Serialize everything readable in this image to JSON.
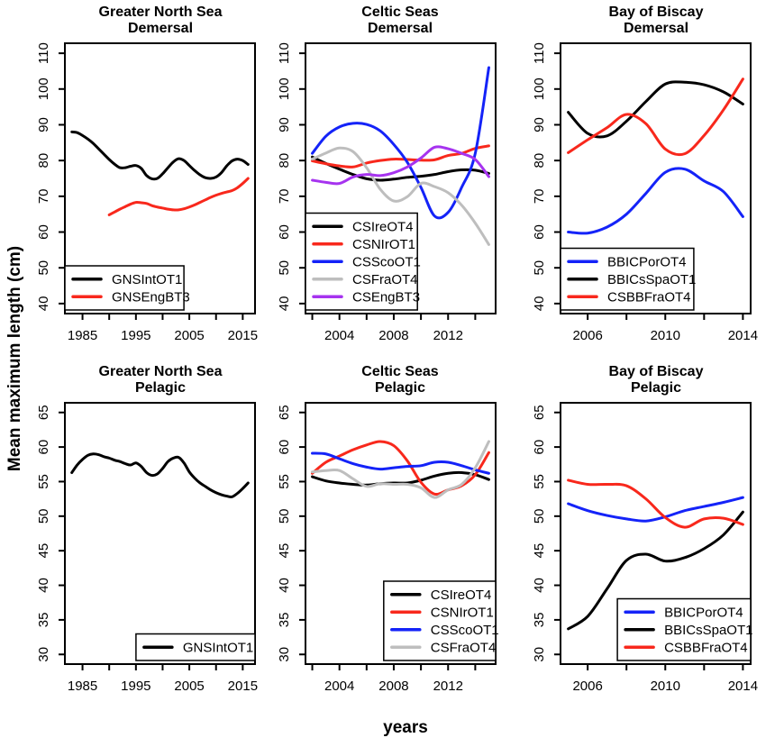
{
  "chart_data": {
    "type": "line",
    "figure_ylabel": "Mean maximum length (cm)",
    "figure_xlabel": "years",
    "colors": {
      "black": "#000000",
      "red": "#f8281c",
      "blue": "#1423f8",
      "gray": "#bebebe",
      "purple": "#a633ef"
    },
    "panels": [
      {
        "id": "greater-north-sea-demersal",
        "title_lines": [
          "Greater North Sea",
          "Demersal"
        ],
        "xlim": [
          1981.7,
          2017.3
        ],
        "ylim": [
          37.2,
          112.8
        ],
        "xticks": [
          1985,
          1990,
          1995,
          2000,
          2005,
          2010,
          2015
        ],
        "xtick_labels": [
          "1985",
          "",
          "1995",
          "",
          "2005",
          "",
          "2015"
        ],
        "yticks": [
          40,
          50,
          60,
          70,
          80,
          90,
          100,
          110
        ],
        "legend_position": "bottomleft",
        "series": [
          {
            "name": "GNSIntOT1",
            "color": "black",
            "years": [
              1983,
              1984,
              1985,
              1986,
              1987,
              1988,
              1989,
              1990,
              1991,
              1992,
              1993,
              1994,
              1995,
              1996,
              1997,
              1998,
              1999,
              2000,
              2001,
              2002,
              2003,
              2004,
              2005,
              2006,
              2007,
              2008,
              2009,
              2010,
              2011,
              2012,
              2013,
              2014,
              2015,
              2016
            ],
            "values": [
              88.0,
              87.8,
              87.0,
              86.0,
              84.8,
              83.3,
              81.8,
              80.3,
              79.0,
              78.0,
              78.0,
              78.4,
              78.6,
              77.8,
              75.8,
              74.9,
              75.0,
              76.3,
              78.0,
              79.6,
              80.5,
              80.0,
              78.6,
              77.2,
              76.0,
              75.2,
              75.0,
              75.4,
              76.6,
              78.5,
              79.9,
              80.4,
              80.0,
              78.9
            ]
          },
          {
            "name": "GNSEngBT3",
            "color": "red",
            "years": [
              1990,
              1991,
              1992,
              1993,
              1994,
              1995,
              1996,
              1997,
              1998,
              1999,
              2000,
              2001,
              2002,
              2003,
              2004,
              2005,
              2006,
              2007,
              2008,
              2009,
              2010,
              2011,
              2012,
              2013,
              2014,
              2015,
              2016
            ],
            "values": [
              64.8,
              65.6,
              66.4,
              67.1,
              67.8,
              68.3,
              68.2,
              68.0,
              67.4,
              67.0,
              66.7,
              66.4,
              66.2,
              66.2,
              66.5,
              67.0,
              67.6,
              68.3,
              69.0,
              69.7,
              70.3,
              70.8,
              71.2,
              71.6,
              72.4,
              73.6,
              75.0
            ]
          }
        ]
      },
      {
        "id": "celtic-seas-demersal",
        "title_lines": [
          "Celtic Seas",
          "Demersal"
        ],
        "xlim": [
          2001.5,
          2015.5
        ],
        "ylim": [
          37.2,
          112.8
        ],
        "xticks": [
          2002,
          2004,
          2006,
          2008,
          2010,
          2012,
          2014
        ],
        "xtick_labels": [
          "",
          "2004",
          "",
          "2008",
          "",
          "2012",
          ""
        ],
        "yticks": [
          40,
          50,
          60,
          70,
          80,
          90,
          100,
          110
        ],
        "legend_position": "bottomleft",
        "series": [
          {
            "name": "CSIreOT4",
            "color": "black",
            "years": [
              2002,
              2003,
              2004,
              2005,
              2006,
              2007,
              2008,
              2009,
              2010,
              2011,
              2012,
              2013,
              2014,
              2015
            ],
            "values": [
              81.0,
              79.2,
              77.6,
              76.1,
              74.9,
              74.5,
              74.8,
              75.3,
              75.6,
              76.1,
              76.9,
              77.4,
              77.3,
              76.4
            ]
          },
          {
            "name": "CSNIrOT1",
            "color": "red",
            "years": [
              2002,
              2003,
              2004,
              2005,
              2006,
              2007,
              2008,
              2009,
              2010,
              2011,
              2012,
              2013,
              2014,
              2015
            ],
            "values": [
              79.9,
              79.1,
              78.5,
              78.2,
              79.3,
              80.0,
              80.4,
              80.3,
              80.1,
              80.2,
              81.4,
              82.0,
              83.4,
              84.1
            ]
          },
          {
            "name": "CSScoOT1",
            "color": "blue",
            "years": [
              2002,
              2003,
              2004,
              2005,
              2006,
              2007,
              2008,
              2009,
              2010,
              2011,
              2012,
              2013,
              2014,
              2015
            ],
            "values": [
              82.0,
              86.8,
              89.4,
              90.4,
              90.1,
              88.3,
              84.5,
              79.5,
              72.5,
              64.5,
              65.5,
              72.5,
              82.0,
              106.0
            ]
          },
          {
            "name": "CSFraOT4",
            "color": "gray",
            "years": [
              2002,
              2003,
              2004,
              2005,
              2006,
              2007,
              2008,
              2009,
              2010,
              2011,
              2012,
              2013,
              2014,
              2015
            ],
            "values": [
              80.4,
              82.1,
              83.5,
              82.5,
              78.0,
              72.0,
              68.7,
              69.9,
              73.6,
              72.7,
              71.0,
              67.5,
              62.5,
              56.5
            ]
          },
          {
            "name": "CSEngBT3",
            "color": "purple",
            "years": [
              2002,
              2003,
              2004,
              2005,
              2006,
              2007,
              2008,
              2009,
              2010,
              2011,
              2012,
              2013,
              2014,
              2015
            ],
            "values": [
              74.5,
              73.9,
              73.6,
              75.4,
              76.1,
              75.8,
              76.6,
              78.2,
              80.7,
              83.7,
              83.3,
              82.0,
              80.3,
              75.5
            ]
          }
        ]
      },
      {
        "id": "bay-of-biscay-demersal",
        "title_lines": [
          "Bay of Biscay",
          "Demersal"
        ],
        "xlim": [
          2004.6,
          2014.4
        ],
        "ylim": [
          37.2,
          112.8
        ],
        "xticks": [
          2006,
          2008,
          2010,
          2012,
          2014
        ],
        "xtick_labels": [
          "2006",
          "",
          "2010",
          "",
          "2014"
        ],
        "yticks": [
          40,
          50,
          60,
          70,
          80,
          90,
          100,
          110
        ],
        "legend_position": "bottomleft",
        "series": [
          {
            "name": "BBICPorOT4",
            "color": "blue",
            "years": [
              2005,
              2006,
              2007,
              2008,
              2009,
              2010,
              2011,
              2012,
              2013,
              2014
            ],
            "values": [
              60.0,
              59.7,
              61.4,
              65.0,
              70.8,
              76.7,
              77.6,
              74.3,
              71.3,
              64.3
            ]
          },
          {
            "name": "BBICsSpaOT1",
            "color": "black",
            "years": [
              2005,
              2006,
              2007,
              2008,
              2009,
              2010,
              2011,
              2012,
              2013,
              2014
            ],
            "values": [
              93.5,
              87.6,
              86.9,
              91.0,
              96.5,
              101.4,
              101.9,
              101.2,
              99.2,
              95.8
            ]
          },
          {
            "name": "CSBBFraOT4",
            "color": "red",
            "years": [
              2005,
              2006,
              2007,
              2008,
              2009,
              2010,
              2011,
              2012,
              2013,
              2014
            ],
            "values": [
              82.2,
              85.8,
              89.2,
              92.9,
              90.3,
              83.2,
              81.9,
              87.0,
              94.2,
              102.8
            ]
          }
        ]
      },
      {
        "id": "greater-north-sea-pelagic",
        "title_lines": [
          "Greater North Sea",
          "Pelagic"
        ],
        "xlim": [
          1981.7,
          2017.3
        ],
        "ylim": [
          28.6,
          66.4
        ],
        "xticks": [
          1985,
          1990,
          1995,
          2000,
          2005,
          2010,
          2015
        ],
        "xtick_labels": [
          "1985",
          "",
          "1995",
          "",
          "2005",
          "",
          "2015"
        ],
        "yticks": [
          30,
          35,
          40,
          45,
          50,
          55,
          60,
          65
        ],
        "legend_position": "bottomright",
        "series": [
          {
            "name": "GNSIntOT1",
            "color": "black",
            "years": [
              1983,
              1984,
              1985,
              1986,
              1987,
              1988,
              1989,
              1990,
              1991,
              1992,
              1993,
              1994,
              1995,
              1996,
              1997,
              1998,
              1999,
              2000,
              2001,
              2002,
              2003,
              2004,
              2005,
              2006,
              2007,
              2008,
              2009,
              2010,
              2011,
              2012,
              2013,
              2014,
              2015,
              2016
            ],
            "values": [
              56.3,
              57.4,
              58.2,
              58.8,
              59.0,
              58.9,
              58.6,
              58.4,
              58.1,
              57.9,
              57.6,
              57.4,
              57.7,
              57.2,
              56.3,
              55.9,
              56.1,
              56.9,
              57.9,
              58.4,
              58.5,
              57.7,
              56.4,
              55.5,
              54.8,
              54.3,
              53.8,
              53.4,
              53.1,
              52.9,
              52.8,
              53.3,
              54.0,
              54.8
            ]
          }
        ]
      },
      {
        "id": "celtic-seas-pelagic",
        "title_lines": [
          "Celtic Seas",
          "Pelagic"
        ],
        "xlim": [
          2001.5,
          2015.5
        ],
        "ylim": [
          28.6,
          66.4
        ],
        "xticks": [
          2002,
          2004,
          2006,
          2008,
          2010,
          2012,
          2014
        ],
        "xtick_labels": [
          "",
          "2004",
          "",
          "2008",
          "",
          "2012",
          ""
        ],
        "yticks": [
          30,
          35,
          40,
          45,
          50,
          55,
          60,
          65
        ],
        "legend_position": "bottomright",
        "series": [
          {
            "name": "CSIreOT4",
            "color": "black",
            "years": [
              2002,
              2003,
              2004,
              2005,
              2006,
              2007,
              2008,
              2009,
              2010,
              2011,
              2012,
              2013,
              2014,
              2015
            ],
            "values": [
              55.7,
              55.1,
              54.8,
              54.6,
              54.5,
              54.7,
              54.8,
              54.8,
              55.2,
              55.8,
              56.2,
              56.3,
              56.0,
              55.3
            ]
          },
          {
            "name": "CSNIrOT1",
            "color": "red",
            "years": [
              2002,
              2003,
              2004,
              2005,
              2006,
              2007,
              2008,
              2009,
              2010,
              2011,
              2012,
              2013,
              2014,
              2015
            ],
            "values": [
              56.2,
              57.8,
              58.7,
              59.6,
              60.3,
              60.8,
              60.2,
              58.0,
              54.9,
              53.2,
              53.8,
              54.4,
              56.0,
              59.2
            ]
          },
          {
            "name": "CSScoOT1",
            "color": "blue",
            "years": [
              2002,
              2003,
              2004,
              2005,
              2006,
              2007,
              2008,
              2009,
              2010,
              2011,
              2012,
              2013,
              2014,
              2015
            ],
            "values": [
              59.1,
              59.0,
              58.3,
              57.6,
              57.1,
              56.8,
              57.0,
              57.2,
              57.3,
              57.8,
              57.8,
              57.3,
              56.7,
              56.2
            ]
          },
          {
            "name": "CSFraOT4",
            "color": "gray",
            "years": [
              2002,
              2003,
              2004,
              2005,
              2006,
              2007,
              2008,
              2009,
              2010,
              2011,
              2012,
              2013,
              2014,
              2015
            ],
            "values": [
              56.4,
              56.6,
              56.6,
              55.4,
              54.3,
              54.7,
              54.6,
              54.6,
              54.1,
              52.7,
              53.8,
              54.6,
              57.0,
              60.8
            ]
          }
        ]
      },
      {
        "id": "bay-of-biscay-pelagic",
        "title_lines": [
          "Bay of Biscay",
          "Pelagic"
        ],
        "xlim": [
          2004.6,
          2014.4
        ],
        "ylim": [
          28.6,
          66.4
        ],
        "xticks": [
          2006,
          2008,
          2010,
          2012,
          2014
        ],
        "xtick_labels": [
          "2006",
          "",
          "2010",
          "",
          "2014"
        ],
        "yticks": [
          30,
          35,
          40,
          45,
          50,
          55,
          60,
          65
        ],
        "legend_position": "bottomright",
        "series": [
          {
            "name": "BBICPorOT4",
            "color": "blue",
            "years": [
              2005,
              2006,
              2007,
              2008,
              2009,
              2010,
              2011,
              2012,
              2013,
              2014
            ],
            "values": [
              51.8,
              50.8,
              50.1,
              49.6,
              49.3,
              49.9,
              50.8,
              51.4,
              52.0,
              52.7
            ]
          },
          {
            "name": "BBICsSpaOT1",
            "color": "black",
            "years": [
              2005,
              2006,
              2007,
              2008,
              2009,
              2010,
              2011,
              2012,
              2013,
              2014
            ],
            "values": [
              33.7,
              35.5,
              39.5,
              43.6,
              44.5,
              43.5,
              44.0,
              45.3,
              47.3,
              50.6
            ]
          },
          {
            "name": "CSBBFraOT4",
            "color": "red",
            "years": [
              2005,
              2006,
              2007,
              2008,
              2009,
              2010,
              2011,
              2012,
              2013,
              2014
            ],
            "values": [
              55.2,
              54.6,
              54.6,
              54.4,
              52.5,
              49.8,
              48.4,
              49.6,
              49.7,
              48.8
            ]
          }
        ]
      }
    ]
  }
}
